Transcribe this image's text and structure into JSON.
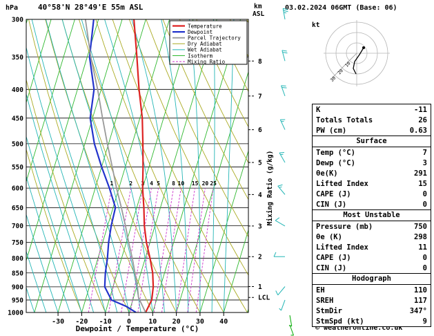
{
  "header": {
    "pressure_unit": "hPa",
    "title": "40°58'N 28°49'E 55m ASL",
    "km_label": "km",
    "asl_label": "ASL",
    "datetime": "03.02.2024 06GMT (Base: 06)"
  },
  "axes": {
    "x_label": "Dewpoint / Temperature (°C)",
    "x_ticks": [
      -30,
      -20,
      -10,
      0,
      10,
      20,
      30,
      40
    ],
    "pressure_ticks": [
      300,
      350,
      400,
      450,
      500,
      550,
      600,
      650,
      700,
      750,
      800,
      850,
      900,
      950,
      1000
    ],
    "km_levels": [
      {
        "km": 8,
        "p": 356
      },
      {
        "km": 7,
        "p": 411
      },
      {
        "km": 6,
        "p": 472
      },
      {
        "km": 5,
        "p": 540
      },
      {
        "km": 4,
        "p": 616
      },
      {
        "km": 3,
        "p": 701
      },
      {
        "km": 2,
        "p": 795
      },
      {
        "km": 1,
        "p": 899
      }
    ],
    "lcl": {
      "label": "LCL",
      "p": 940
    },
    "mixing_axis_label": "Mixing Ratio (g/kg)"
  },
  "legend": [
    {
      "label": "Temperature",
      "color": "#dd2222",
      "width": 2.2,
      "dash": ""
    },
    {
      "label": "Dewpoint",
      "color": "#2233cc",
      "width": 2.2,
      "dash": ""
    },
    {
      "label": "Parcel Trajectory",
      "color": "#999999",
      "width": 1.8,
      "dash": ""
    },
    {
      "label": "Dry Adiabat",
      "color": "#aaaa22",
      "width": 1,
      "dash": ""
    },
    {
      "label": "Wet Adiabat",
      "color": "#22b5b5",
      "width": 1,
      "dash": ""
    },
    {
      "label": "Isotherm",
      "color": "#2eb82e",
      "width": 1,
      "dash": ""
    },
    {
      "label": "Mixing Ratio",
      "color": "#cc33cc",
      "width": 1,
      "dash": "3,2"
    }
  ],
  "chart_data": {
    "type": "skewt-sounding",
    "pressure_range_hpa": [
      300,
      1000
    ],
    "temp_axis_range_c": [
      -40,
      45
    ],
    "series": [
      {
        "name": "temperature",
        "points": [
          [
            1000,
            7
          ],
          [
            950,
            8
          ],
          [
            900,
            7
          ],
          [
            850,
            5
          ],
          [
            800,
            2
          ],
          [
            750,
            -1.5
          ],
          [
            700,
            -4.5
          ],
          [
            650,
            -7
          ],
          [
            600,
            -10
          ],
          [
            550,
            -12.5
          ],
          [
            500,
            -15.5
          ],
          [
            450,
            -19
          ],
          [
            400,
            -24
          ],
          [
            350,
            -29
          ],
          [
            300,
            -35
          ]
        ]
      },
      {
        "name": "dewpoint",
        "points": [
          [
            1000,
            3
          ],
          [
            975,
            -2
          ],
          [
            950,
            -9
          ],
          [
            900,
            -13.5
          ],
          [
            850,
            -15
          ],
          [
            800,
            -16
          ],
          [
            750,
            -17.5
          ],
          [
            700,
            -18.5
          ],
          [
            650,
            -19
          ],
          [
            600,
            -24
          ],
          [
            550,
            -30
          ],
          [
            500,
            -36
          ],
          [
            450,
            -41
          ],
          [
            400,
            -43
          ],
          [
            350,
            -49
          ],
          [
            300,
            -52
          ]
        ]
      },
      {
        "name": "parcel",
        "points": [
          [
            1000,
            7
          ],
          [
            940,
            2.1
          ],
          [
            900,
            0.3
          ],
          [
            850,
            -2.5
          ],
          [
            800,
            -5.5
          ],
          [
            750,
            -9
          ],
          [
            700,
            -12.5
          ],
          [
            650,
            -16.5
          ],
          [
            600,
            -21
          ],
          [
            550,
            -25.5
          ],
          [
            500,
            -30.5
          ],
          [
            450,
            -35.8
          ],
          [
            400,
            -41.5
          ],
          [
            350,
            -48.5
          ],
          [
            300,
            -55.5
          ]
        ]
      }
    ],
    "mixing_ratio_values": [
      1,
      2,
      3,
      4,
      5,
      8,
      10,
      15,
      20,
      25
    ],
    "background": {
      "isotherms": {
        "min": -80,
        "max": 50,
        "step": 10
      },
      "dry_adiabats": {
        "min": -20,
        "max": 140,
        "step": 10
      },
      "wet_adiabats": {
        "min": -40,
        "max": 40,
        "step": 5
      }
    },
    "wind_barbs": {
      "upper": [
        {
          "p": 300,
          "dir": 350,
          "spd": 25
        },
        {
          "p": 356,
          "dir": 345,
          "spd": 20
        },
        {
          "p": 411,
          "dir": 340,
          "spd": 20
        },
        {
          "p": 472,
          "dir": 335,
          "spd": 15
        },
        {
          "p": 540,
          "dir": 330,
          "spd": 15
        },
        {
          "p": 616,
          "dir": 320,
          "spd": 15
        },
        {
          "p": 701,
          "dir": 300,
          "spd": 10
        },
        {
          "p": 795,
          "dir": 270,
          "spd": 10
        },
        {
          "p": 899,
          "dir": 220,
          "spd": 10
        },
        {
          "p": 950,
          "dir": 200,
          "spd": 5
        }
      ],
      "surface": [
        {
          "dir": 170,
          "spd": 5
        },
        {
          "dir": 160,
          "spd": 5
        }
      ]
    }
  },
  "hodograph": {
    "unit": "kt",
    "rings_kt": [
      10,
      20,
      30
    ],
    "ring_labels": [
      "10",
      "20",
      "30"
    ],
    "trace": [
      [
        10,
        -8
      ],
      [
        4,
        2
      ],
      [
        -3,
        12
      ],
      [
        -5,
        22
      ],
      [
        -1,
        30
      ]
    ]
  },
  "table": {
    "summary": [
      {
        "label": "K",
        "value": "-11"
      },
      {
        "label": "Totals Totals",
        "value": "26"
      },
      {
        "label": "PW (cm)",
        "value": "0.63"
      }
    ],
    "sections": [
      {
        "title": "Surface",
        "rows": [
          {
            "label": "Temp (°C)",
            "value": "7"
          },
          {
            "label": "Dewp (°C)",
            "value": "3"
          },
          {
            "label": "θe(K)",
            "value": "291"
          },
          {
            "label": "Lifted Index",
            "value": "15"
          },
          {
            "label": "CAPE (J)",
            "value": "0"
          },
          {
            "label": "CIN (J)",
            "value": "0"
          }
        ]
      },
      {
        "title": "Most Unstable",
        "rows": [
          {
            "label": "Pressure (mb)",
            "value": "750"
          },
          {
            "label": "θe (K)",
            "value": "298"
          },
          {
            "label": "Lifted Index",
            "value": "11"
          },
          {
            "label": "CAPE (J)",
            "value": "0"
          },
          {
            "label": "CIN (J)",
            "value": "0"
          }
        ]
      },
      {
        "title": "Hodograph",
        "rows": [
          {
            "label": "EH",
            "value": "110"
          },
          {
            "label": "SREH",
            "value": "117"
          },
          {
            "label": "StmDir",
            "value": "347°"
          },
          {
            "label": "StmSpd (kt)",
            "value": "9"
          }
        ]
      }
    ]
  },
  "footer": {
    "copyright": "© weatheronline.co.uk"
  }
}
